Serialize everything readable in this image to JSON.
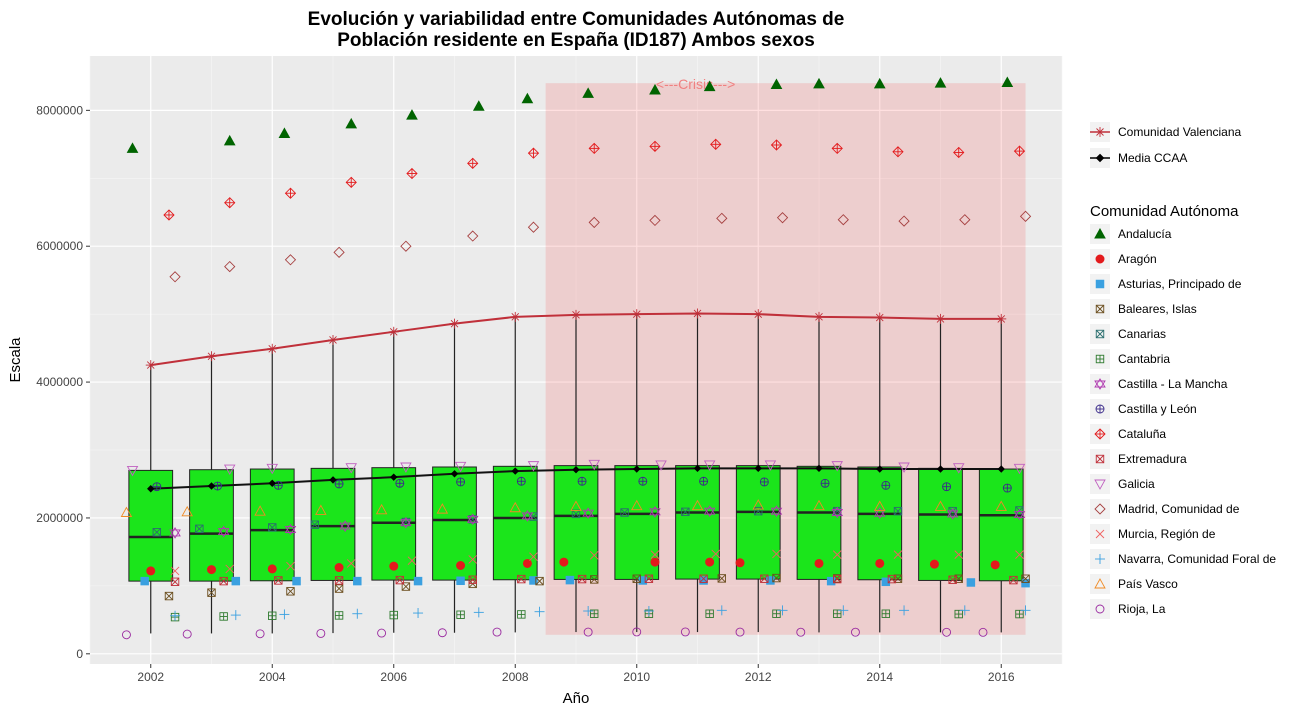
{
  "chart_data": {
    "type": "box",
    "title_line1": "Evolución y variabilidad entre Comunidades Autónomas de",
    "title_line2": "Población residente en España (ID187) Ambos sexos",
    "xlabel": "Año",
    "ylabel": "Escala",
    "xlim": [
      2001.0,
      2017.0
    ],
    "ylim": [
      -150000,
      8800000
    ],
    "x_ticks": [
      2002,
      2004,
      2006,
      2008,
      2010,
      2012,
      2014,
      2016
    ],
    "y_ticks": [
      0,
      2000000,
      4000000,
      6000000,
      8000000
    ],
    "y_tick_labels": [
      "0",
      "2000000",
      "4000000",
      "6000000",
      "8000000"
    ],
    "years": [
      2002,
      2003,
      2004,
      2005,
      2006,
      2007,
      2008,
      2009,
      2010,
      2011,
      2012,
      2013,
      2014,
      2015,
      2016
    ],
    "crisis": {
      "label": "<---Crisis--->",
      "x_start": 2008.5,
      "x_end": 2016.4,
      "y_top": 8400000,
      "y_bottom": 280000
    },
    "boxes": {
      "q1": [
        1070000,
        1070000,
        1075000,
        1080000,
        1085000,
        1085000,
        1090000,
        1095000,
        1095000,
        1100000,
        1100000,
        1095000,
        1090000,
        1080000,
        1075000
      ],
      "median": [
        1720000,
        1770000,
        1820000,
        1880000,
        1930000,
        1970000,
        2000000,
        2030000,
        2060000,
        2080000,
        2090000,
        2080000,
        2060000,
        2050000,
        2040000
      ],
      "q3": [
        2700000,
        2710000,
        2720000,
        2730000,
        2740000,
        2750000,
        2760000,
        2770000,
        2770000,
        2770000,
        2770000,
        2760000,
        2750000,
        2730000,
        2720000
      ],
      "whisker_low": [
        300000,
        300000,
        300000,
        305000,
        310000,
        310000,
        315000,
        320000,
        320000,
        320000,
        320000,
        315000,
        315000,
        315000,
        315000
      ],
      "whisker_high": [
        4250000,
        4380000,
        4490000,
        4620000,
        4740000,
        4860000,
        4960000,
        4990000,
        5000000,
        5010000,
        5000000,
        4960000,
        4950000,
        4930000,
        4930000
      ]
    },
    "media_ccaa": [
      2430000,
      2470000,
      2510000,
      2560000,
      2600000,
      2650000,
      2690000,
      2710000,
      2720000,
      2730000,
      2730000,
      2730000,
      2720000,
      2720000,
      2720000
    ],
    "comunidad_valenciana": [
      4250000,
      4380000,
      4490000,
      4620000,
      4740000,
      4860000,
      4960000,
      4990000,
      5000000,
      5010000,
      5000000,
      4960000,
      4950000,
      4930000,
      4930000
    ],
    "legend_top": [
      {
        "label": "Comunidad Valenciana",
        "shape": "asterisk",
        "color": "#c0303a"
      },
      {
        "label": "Media CCAA",
        "shape": "diamond",
        "color": "#000000"
      }
    ],
    "legend_title": "Comunidad Autónoma",
    "series": [
      {
        "name": "Andalucía",
        "shape": "triangle",
        "color": "#006400",
        "jitter": [
          -0.3,
          0.3,
          0.2,
          0.3,
          0.3,
          0.4,
          0.2,
          0.2,
          0.3,
          0.2,
          0.3,
          0.0,
          0.0,
          0.0,
          0.1
        ],
        "values": [
          7440000,
          7550000,
          7660000,
          7800000,
          7930000,
          8060000,
          8170000,
          8250000,
          8300000,
          8350000,
          8380000,
          8390000,
          8390000,
          8400000,
          8410000
        ]
      },
      {
        "name": "Aragón",
        "shape": "circle",
        "color": "#e31a1c",
        "jitter": [
          0.0,
          0.0,
          0.0,
          0.1,
          0.0,
          0.1,
          0.2,
          -0.2,
          0.3,
          0.2,
          -0.3,
          0.0,
          0.0,
          -0.1,
          -0.1
        ],
        "values": [
          1220000,
          1240000,
          1250000,
          1270000,
          1290000,
          1300000,
          1330000,
          1350000,
          1350000,
          1350000,
          1340000,
          1330000,
          1330000,
          1320000,
          1310000
        ]
      },
      {
        "name": "Asturias, Principado de",
        "shape": "square",
        "color": "#3aa0e0",
        "jitter": [
          -0.1,
          0.4,
          0.4,
          0.4,
          0.4,
          0.1,
          0.3,
          -0.1,
          0.1,
          0.1,
          0.2,
          0.2,
          0.1,
          0.5,
          0.4
        ],
        "values": [
          1070000,
          1070000,
          1070000,
          1070000,
          1070000,
          1075000,
          1080000,
          1085000,
          1080000,
          1080000,
          1080000,
          1070000,
          1060000,
          1050000,
          1040000
        ]
      },
      {
        "name": "Baleares, Islas",
        "shape": "square-x",
        "color": "#6b4e1e",
        "jitter": [
          0.3,
          0.0,
          0.3,
          0.1,
          0.2,
          0.3,
          0.4,
          0.3,
          0.0,
          0.4,
          0.3,
          0.3,
          0.3,
          0.3,
          0.4
        ],
        "values": [
          850000,
          900000,
          920000,
          960000,
          990000,
          1030000,
          1070000,
          1095000,
          1105000,
          1110000,
          1115000,
          1110000,
          1105000,
          1105000,
          1105000
        ]
      },
      {
        "name": "Canarias",
        "shape": "square-x",
        "color": "#2a6e6e",
        "jitter": [
          0.1,
          -0.2,
          0.0,
          -0.3,
          0.2,
          0.3,
          0.3,
          0.0,
          -0.2,
          -0.2,
          0.0,
          0.3,
          0.3,
          0.2,
          0.3
        ],
        "values": [
          1790000,
          1840000,
          1860000,
          1900000,
          1940000,
          1980000,
          2020000,
          2060000,
          2080000,
          2090000,
          2100000,
          2100000,
          2100000,
          2100000,
          2110000
        ]
      },
      {
        "name": "Cantabria",
        "shape": "square-plus",
        "color": "#2f7a2f",
        "jitter": [
          0.4,
          0.2,
          0.0,
          0.1,
          0.0,
          0.1,
          0.1,
          0.3,
          0.2,
          0.2,
          0.3,
          0.3,
          0.1,
          0.3,
          0.3
        ],
        "values": [
          540000,
          550000,
          560000,
          565000,
          570000,
          575000,
          580000,
          590000,
          590000,
          590000,
          590000,
          590000,
          590000,
          585000,
          585000
        ]
      },
      {
        "name": "Castilla - La Mancha",
        "shape": "star",
        "color": "#b03ab0",
        "jitter": [
          0.4,
          0.2,
          0.3,
          0.2,
          0.2,
          0.3,
          0.2,
          0.2,
          0.3,
          0.2,
          0.3,
          0.3,
          0.0,
          0.2,
          0.3
        ],
        "values": [
          1780000,
          1800000,
          1830000,
          1880000,
          1930000,
          1980000,
          2030000,
          2070000,
          2090000,
          2100000,
          2100000,
          2080000,
          2070000,
          2060000,
          2050000
        ]
      },
      {
        "name": "Castilla y León",
        "shape": "circle-plus",
        "color": "#3a2a8a",
        "jitter": [
          0.1,
          0.1,
          0.1,
          0.1,
          0.1,
          0.1,
          0.1,
          0.1,
          0.1,
          0.1,
          0.1,
          0.1,
          0.1,
          0.1,
          0.1
        ],
        "values": [
          2460000,
          2470000,
          2480000,
          2500000,
          2510000,
          2530000,
          2540000,
          2540000,
          2540000,
          2540000,
          2530000,
          2510000,
          2480000,
          2460000,
          2440000
        ]
      },
      {
        "name": "Cataluña",
        "shape": "diamond-plus",
        "color": "#e31a1c",
        "jitter": [
          0.3,
          0.3,
          0.3,
          0.3,
          0.3,
          0.3,
          0.3,
          0.3,
          0.3,
          0.3,
          0.3,
          0.3,
          0.3,
          0.3,
          0.3
        ],
        "values": [
          6460000,
          6640000,
          6780000,
          6940000,
          7070000,
          7220000,
          7370000,
          7440000,
          7470000,
          7500000,
          7490000,
          7440000,
          7390000,
          7380000,
          7400000
        ]
      },
      {
        "name": "Extremadura",
        "shape": "square-x",
        "color": "#c0303a",
        "jitter": [
          0.4,
          0.2,
          0.1,
          0.1,
          0.1,
          0.3,
          0.1,
          0.1,
          0.2,
          0.1,
          0.1,
          0.3,
          0.2,
          0.2,
          0.2
        ],
        "values": [
          1060000,
          1070000,
          1080000,
          1080000,
          1085000,
          1090000,
          1100000,
          1100000,
          1105000,
          1105000,
          1105000,
          1100000,
          1100000,
          1090000,
          1085000
        ]
      },
      {
        "name": "Galicia",
        "shape": "triangle-down",
        "color": "#c060c0",
        "jitter": [
          -0.3,
          0.3,
          0.0,
          0.3,
          0.2,
          0.1,
          0.3,
          0.3,
          0.4,
          0.2,
          0.2,
          0.3,
          0.4,
          0.3,
          0.3
        ],
        "values": [
          2700000,
          2720000,
          2730000,
          2740000,
          2750000,
          2760000,
          2770000,
          2790000,
          2780000,
          2780000,
          2780000,
          2770000,
          2750000,
          2740000,
          2730000
        ]
      },
      {
        "name": "Madrid, Comunidad de",
        "shape": "diamond",
        "color": "#a64040",
        "jitter": [
          0.4,
          0.3,
          0.3,
          0.1,
          0.2,
          0.3,
          0.3,
          0.3,
          0.3,
          0.4,
          0.4,
          0.4,
          0.4,
          0.4,
          0.4
        ],
        "values": [
          5550000,
          5700000,
          5800000,
          5910000,
          6000000,
          6150000,
          6280000,
          6350000,
          6380000,
          6410000,
          6420000,
          6390000,
          6370000,
          6390000,
          6440000
        ]
      },
      {
        "name": "Murcia, Región de",
        "shape": "cross",
        "color": "#f06060",
        "jitter": [
          0.4,
          0.3,
          0.3,
          0.3,
          0.3,
          0.3,
          0.3,
          0.3,
          0.3,
          0.3,
          0.3,
          0.3,
          0.3,
          0.3,
          0.3
        ],
        "values": [
          1220000,
          1250000,
          1290000,
          1330000,
          1370000,
          1390000,
          1430000,
          1450000,
          1460000,
          1470000,
          1470000,
          1460000,
          1460000,
          1460000,
          1460000
        ]
      },
      {
        "name": "Navarra, Comunidad Foral de",
        "shape": "plus",
        "color": "#3aa0e0",
        "jitter": [
          0.4,
          0.4,
          0.2,
          0.4,
          0.4,
          0.4,
          0.4,
          0.2,
          0.2,
          0.4,
          0.4,
          0.4,
          0.4,
          0.4,
          0.4
        ],
        "values": [
          560000,
          570000,
          580000,
          590000,
          600000,
          610000,
          620000,
          630000,
          630000,
          640000,
          640000,
          640000,
          640000,
          640000,
          640000
        ]
      },
      {
        "name": "País Vasco",
        "shape": "triangle-open",
        "color": "#f08a24",
        "jitter": [
          -0.4,
          -0.4,
          -0.2,
          -0.2,
          -0.2,
          -0.2,
          0.0,
          0.0,
          0.0,
          0.0,
          0.0,
          0.0,
          0.0,
          0.0,
          0.0
        ],
        "values": [
          2080000,
          2090000,
          2100000,
          2110000,
          2120000,
          2130000,
          2150000,
          2170000,
          2180000,
          2180000,
          2190000,
          2180000,
          2170000,
          2170000,
          2170000
        ]
      },
      {
        "name": "Rioja, La",
        "shape": "circle-open",
        "color": "#9a2aa0",
        "jitter": [
          -0.4,
          -0.4,
          -0.2,
          -0.2,
          -0.2,
          -0.2,
          -0.3,
          0.2,
          0.0,
          -0.2,
          -0.3,
          -0.3,
          -0.4,
          0.1,
          -0.3
        ],
        "values": [
          280000,
          290000,
          295000,
          300000,
          305000,
          310000,
          320000,
          320000,
          322000,
          322000,
          320000,
          318000,
          318000,
          317000,
          316000
        ]
      }
    ]
  }
}
